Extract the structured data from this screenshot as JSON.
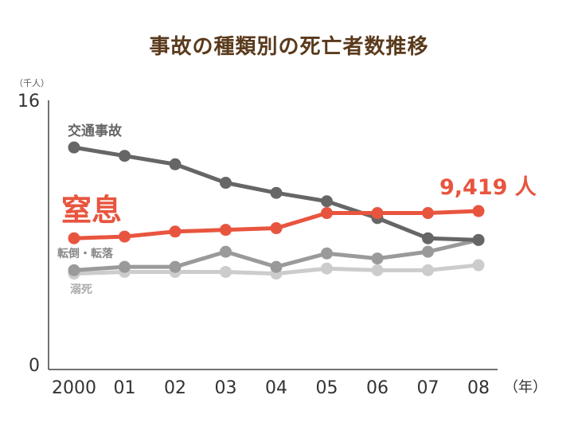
{
  "chart_data": {
    "type": "line",
    "title": "事故の種類別の死亡者数推移",
    "y_unit": "（千人）",
    "x_unit": "（年）",
    "ylim": [
      0,
      16
    ],
    "y_ticks": [
      "0",
      "16"
    ],
    "categories": [
      "2000",
      "01",
      "02",
      "03",
      "04",
      "05",
      "06",
      "07",
      "08"
    ],
    "grid": false,
    "series": [
      {
        "name": "交通事故",
        "color": "#666666",
        "label_color": "#666666",
        "values": [
          13.2,
          12.7,
          12.2,
          11.1,
          10.5,
          10.0,
          9.0,
          7.8,
          7.7
        ]
      },
      {
        "name": "窒息",
        "color": "#e8553f",
        "label_color": "#e8553f",
        "values": [
          7.8,
          7.9,
          8.2,
          8.3,
          8.4,
          9.3,
          9.3,
          9.3,
          9.419
        ]
      },
      {
        "name": "転倒・転落",
        "color": "#9a9a9a",
        "label_color": "#888888",
        "values": [
          5.9,
          6.1,
          6.1,
          7.0,
          6.1,
          6.9,
          6.6,
          7.0,
          7.7
        ]
      },
      {
        "name": "溺死",
        "color": "#cccccc",
        "label_color": "#aaaaaa",
        "values": [
          5.7,
          5.8,
          5.8,
          5.8,
          5.7,
          6.0,
          5.9,
          5.9,
          6.2
        ]
      }
    ],
    "annotations": [
      {
        "series": "窒息",
        "text": "9,419 人"
      }
    ]
  }
}
